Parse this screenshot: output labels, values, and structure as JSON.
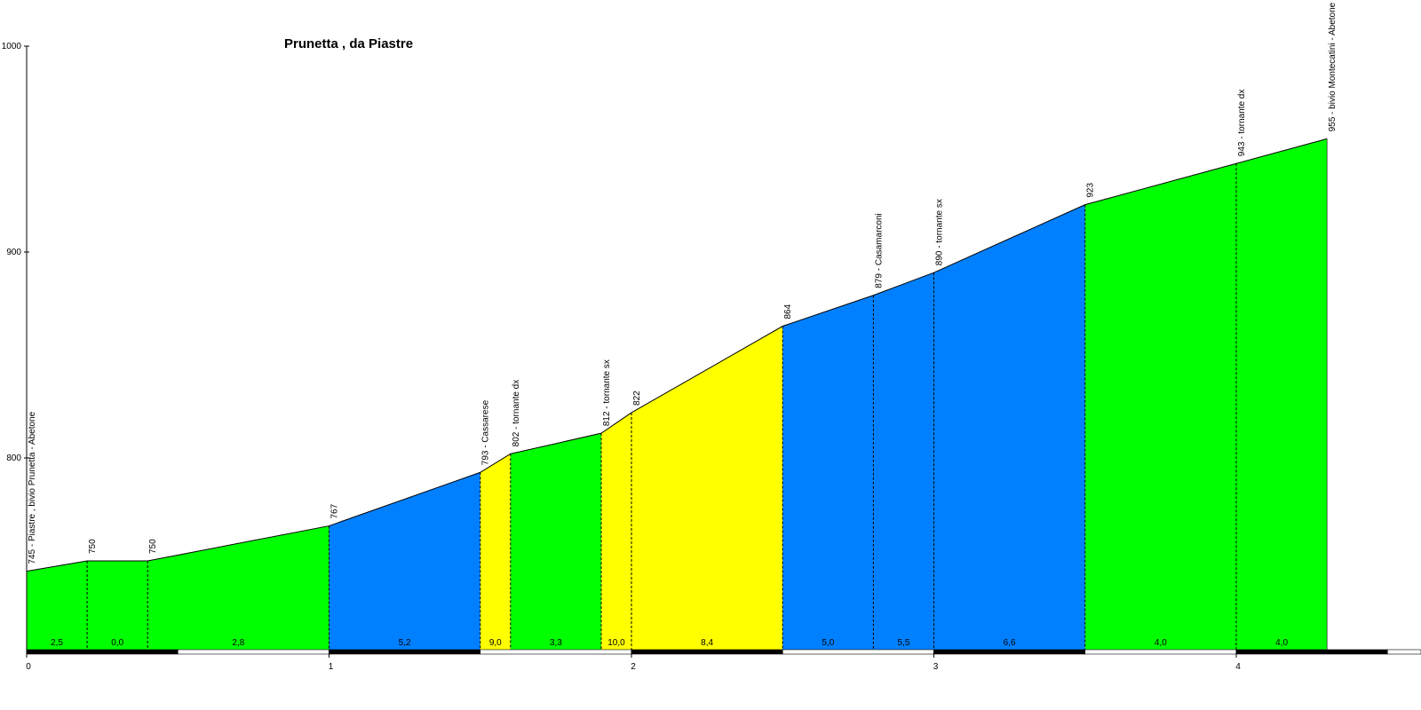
{
  "chart_data": {
    "type": "area",
    "title": "Prunetta , da Piastre",
    "xlabel": "",
    "ylabel": "",
    "xlim": [
      0,
      4.5
    ],
    "ylim": [
      720,
      1000
    ],
    "x_ticks": [
      "0",
      "1",
      "2",
      "3",
      "4"
    ],
    "y_ticks": [
      "800",
      "900",
      "1000"
    ],
    "points": [
      {
        "x": 0.0,
        "elev": 745,
        "label": "745 - Piastre , bivio Prunetta - Abetone"
      },
      {
        "x": 0.2,
        "elev": 750,
        "label": "750"
      },
      {
        "x": 0.4,
        "elev": 750,
        "label": "750"
      },
      {
        "x": 1.0,
        "elev": 767,
        "label": "767"
      },
      {
        "x": 1.5,
        "elev": 793,
        "label": "793 - Cassarese"
      },
      {
        "x": 1.6,
        "elev": 802,
        "label": "802 - tornante dx"
      },
      {
        "x": 1.9,
        "elev": 812,
        "label": "812 - tornante sx"
      },
      {
        "x": 2.0,
        "elev": 822,
        "label": "822"
      },
      {
        "x": 2.5,
        "elev": 864,
        "label": "864"
      },
      {
        "x": 2.8,
        "elev": 879,
        "label": "879 - Casamarconi"
      },
      {
        "x": 3.0,
        "elev": 890,
        "label": "890 - tornante sx"
      },
      {
        "x": 3.5,
        "elev": 923,
        "label": "923"
      },
      {
        "x": 4.0,
        "elev": 943,
        "label": "943 - tornante dx"
      },
      {
        "x": 4.3,
        "elev": 955,
        "label": "955 - bivio Montecatini - Abetone"
      }
    ],
    "segments": [
      {
        "gradient": "2,5",
        "color": "#00ff00"
      },
      {
        "gradient": "0,0",
        "color": "#00ff00"
      },
      {
        "gradient": "2,8",
        "color": "#00ff00"
      },
      {
        "gradient": "5,2",
        "color": "#0080ff"
      },
      {
        "gradient": "9,0",
        "color": "#ffff00"
      },
      {
        "gradient": "3,3",
        "color": "#00ff00"
      },
      {
        "gradient": "10,0",
        "color": "#ffff00"
      },
      {
        "gradient": "8,4",
        "color": "#ffff00"
      },
      {
        "gradient": "5,0",
        "color": "#0080ff"
      },
      {
        "gradient": "5,5",
        "color": "#0080ff"
      },
      {
        "gradient": "6,6",
        "color": "#0080ff"
      },
      {
        "gradient": "4,0",
        "color": "#00ff00"
      },
      {
        "gradient": "4,0",
        "color": "#00ff00"
      }
    ],
    "grid": false,
    "legend": "none"
  }
}
